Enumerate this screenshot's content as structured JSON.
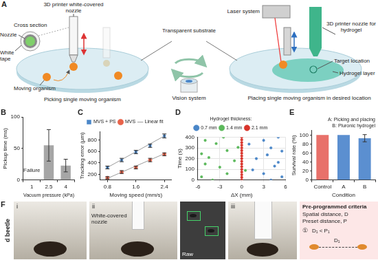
{
  "diagram": {
    "label": "A",
    "left_nozzle": "3D printer white-covered nozzle",
    "cross_section": "Cross section",
    "nozzle": "Nozzle",
    "tape": "White tape",
    "organism": "Moving organism",
    "left_caption": "Picking single moving organism",
    "substrate": "Transparent substrate",
    "vision": "Vision system",
    "laser": "Laser system",
    "right_nozzle": "3D printer nozzle for hydrogel",
    "target": "Target location",
    "hydrogel": "Hydrogel layer",
    "right_caption": "Placing single moving organism in desired location"
  },
  "chart_data": [
    {
      "panel": "B",
      "type": "bar",
      "categories": [
        "1",
        "2.5",
        "4"
      ],
      "values": [
        null,
        55,
        23
      ],
      "errors": [
        null,
        25,
        10
      ],
      "color": "#a6a6a6",
      "x_label": "Vacuum pressure (kPa)",
      "y_label": "Pickup time (ms)",
      "ylim": [
        0,
        100
      ],
      "yticks": [
        0,
        50,
        100
      ],
      "grid": false,
      "annotations": [
        {
          "text": "Failure",
          "x": "1"
        }
      ]
    },
    {
      "panel": "C",
      "type": "scatter",
      "x": [
        0.8,
        1.2,
        1.6,
        2.0,
        2.4
      ],
      "xlim": [
        0.6,
        2.6
      ],
      "xticks": [
        0.8,
        1.6,
        2.4
      ],
      "ylim": [
        100,
        950
      ],
      "yticks": [
        200,
        400,
        600,
        800
      ],
      "x_label": "Moving speed (mm/s)",
      "y_label": "Tracking error (µm)",
      "grid": false,
      "legend": "top",
      "series": [
        {
          "name": "MVS + PS",
          "color": "#4a86c8",
          "marker": "square",
          "values": [
            320,
            450,
            590,
            700,
            870
          ],
          "errors": [
            25,
            30,
            30,
            30,
            35
          ]
        },
        {
          "name": "MVS",
          "color": "#e8634a",
          "marker": "circle",
          "values": [
            140,
            240,
            320,
            450,
            550
          ],
          "errors": [
            20,
            25,
            25,
            30,
            25
          ]
        },
        {
          "name": "Linear fit",
          "type": "line",
          "color": "#9a9a9a",
          "line_style": "solid",
          "values": [
            320,
            457.5,
            595,
            732.5,
            870
          ]
        },
        {
          "name": "Linear fit",
          "type": "line",
          "color": "#9a9a9a",
          "line_style": "solid",
          "values": [
            130,
            237.5,
            345,
            452.5,
            560
          ]
        }
      ]
    },
    {
      "panel": "D",
      "type": "scatter",
      "legend_title": "Hydrogel thickness:",
      "legend": "top",
      "grid": true,
      "x_label": "ΔX (mm)",
      "y_label": "Time (s)",
      "xlim": [
        -6,
        6
      ],
      "xticks": [
        -6,
        -3,
        0,
        3,
        6
      ],
      "ylim": [
        0,
        400
      ],
      "yticks": [
        0,
        100,
        200,
        300,
        400
      ],
      "series": [
        {
          "name": "0.7 mm",
          "color": "#4a86c8",
          "marker": "circle",
          "x": [
            4,
            5.5,
            3,
            1.5,
            4.5,
            5,
            2,
            3.5,
            5.5,
            4,
            1,
            3,
            5
          ],
          "values": [
            0,
            30,
            60,
            95,
            130,
            165,
            200,
            235,
            270,
            300,
            335,
            370,
            400
          ]
        },
        {
          "name": "1.4 mm",
          "color": "#5bb85b",
          "marker": "circle",
          "x": [
            -4,
            -5.5,
            -2,
            0.5,
            -3,
            -5,
            -1,
            -4.5,
            -5.5,
            -2,
            -0.5,
            -3.5,
            -5,
            -2.5
          ],
          "values": [
            0,
            30,
            60,
            90,
            120,
            150,
            180,
            210,
            245,
            275,
            305,
            340,
            370,
            400
          ]
        },
        {
          "name": "2.1 mm",
          "color": "#d9342b",
          "marker": "circle",
          "x": [
            0,
            0,
            0,
            0,
            0,
            0,
            0,
            0,
            0,
            0,
            0,
            0,
            0,
            0,
            0,
            0,
            0
          ],
          "values": [
            0,
            25,
            50,
            75,
            100,
            125,
            150,
            175,
            200,
            225,
            250,
            275,
            300,
            325,
            350,
            375,
            400
          ]
        }
      ]
    },
    {
      "panel": "E",
      "type": "bar",
      "categories": [
        "Control",
        "A",
        "B"
      ],
      "values": [
        100,
        100,
        93
      ],
      "errors": [
        null,
        null,
        8
      ],
      "colors": [
        "#e8716a",
        "#5b8fd0",
        "#5b8fd0"
      ],
      "x_label": "Condition",
      "y_label": "Survival rate (%)",
      "ylim": [
        0,
        110
      ],
      "yticks": [
        0,
        20,
        40,
        60,
        80,
        100
      ],
      "grid": false,
      "annotations": [
        {
          "text": "A: Picking and placing"
        },
        {
          "text": "B: Pluronic hydrogel"
        }
      ]
    }
  ],
  "photos": {
    "label": "F",
    "side_label": "d beetle",
    "frames": [
      "i",
      "ii",
      "iii"
    ],
    "nozzle_label": "White-covered nozzle",
    "inset_label": "Raw",
    "criteria": {
      "title": "Pre-programmed criteria",
      "lines": [
        "Spatial distance, D",
        "Preset distance, P"
      ],
      "step": "①",
      "rule": "D₁ < P₁",
      "distance": "D₁"
    }
  }
}
